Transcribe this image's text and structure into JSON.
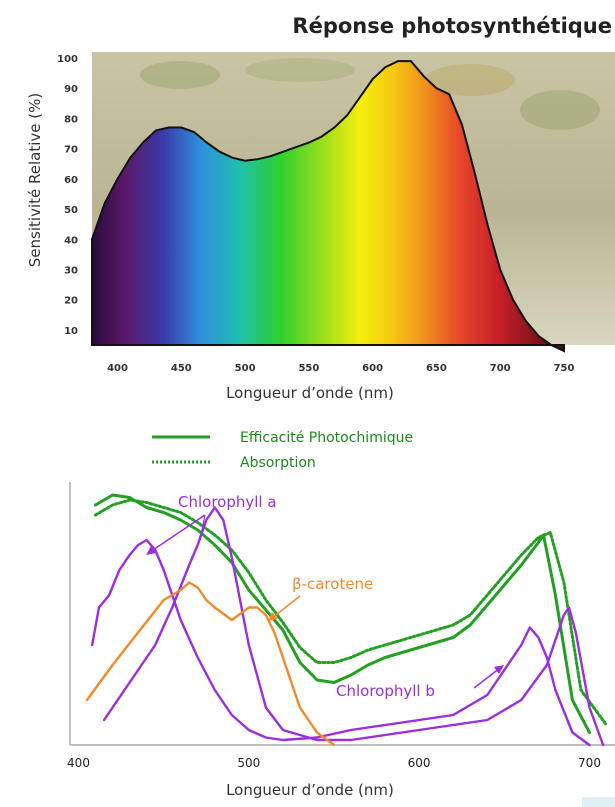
{
  "chart_data": [
    {
      "type": "area",
      "title": "Réponse photosynthétique",
      "xlabel": "Longueur d’onde (nm)",
      "ylabel": "Sensitivité Relative (%)",
      "xlim": [
        380,
        790
      ],
      "ylim": [
        5,
        102
      ],
      "x_ticks": [
        "400",
        "450",
        "500",
        "550",
        "600",
        "650",
        "700",
        "750"
      ],
      "y_ticks": [
        "100",
        "90",
        "80",
        "70",
        "60",
        "50",
        "40",
        "30",
        "20",
        "10"
      ],
      "fill": "visible-spectrum gradient",
      "series": [
        {
          "x": [
            380,
            390,
            400,
            410,
            420,
            430,
            440,
            450,
            460,
            470,
            480,
            490,
            500,
            510,
            520,
            530,
            540,
            550,
            560,
            570,
            580,
            590,
            600,
            610,
            620,
            630,
            640,
            650,
            660,
            670,
            680,
            690,
            700,
            710,
            720,
            730,
            740,
            750
          ],
          "y": [
            40,
            52,
            60,
            67,
            72,
            76,
            77,
            77,
            75.5,
            72,
            69,
            67,
            66,
            66.5,
            67.5,
            69,
            70.5,
            72,
            74,
            77,
            81,
            87,
            93,
            97,
            99,
            99,
            94,
            90,
            88,
            78,
            62,
            45,
            30,
            20,
            13,
            8,
            5,
            3
          ]
        }
      ]
    },
    {
      "type": "line",
      "xlabel": "Longueur d’onde (nm)",
      "ylabel": "",
      "xlim": [
        395,
        715
      ],
      "x_ticks": [
        "400",
        "500",
        "600",
        "700"
      ],
      "legend": [
        {
          "label": "Efficacité Photochimique",
          "style": "solid",
          "color": "#22a022"
        },
        {
          "label": "Absorption",
          "style": "dotted",
          "color": "#22a022"
        }
      ],
      "annotations": [
        "Chlorophyll a",
        "β-carotene",
        "Chlorophyll b"
      ],
      "series": [
        {
          "label": "Efficacité Photochimique",
          "color": "#22a022",
          "x": [
            410,
            420,
            430,
            440,
            450,
            460,
            470,
            480,
            490,
            500,
            510,
            520,
            530,
            540,
            550,
            560,
            570,
            580,
            590,
            600,
            610,
            620,
            630,
            640,
            650,
            660,
            670,
            673,
            680,
            690,
            700
          ],
          "y": [
            0.96,
            1.0,
            0.99,
            0.95,
            0.93,
            0.9,
            0.86,
            0.8,
            0.73,
            0.62,
            0.54,
            0.46,
            0.33,
            0.26,
            0.25,
            0.28,
            0.32,
            0.35,
            0.37,
            0.39,
            0.41,
            0.43,
            0.48,
            0.56,
            0.64,
            0.72,
            0.81,
            0.84,
            0.6,
            0.18,
            0.05
          ]
        },
        {
          "label": "Absorption",
          "color": "#22a022",
          "x": [
            410,
            420,
            430,
            440,
            450,
            460,
            470,
            480,
            490,
            500,
            510,
            520,
            530,
            540,
            550,
            560,
            570,
            580,
            590,
            600,
            610,
            620,
            630,
            640,
            650,
            660,
            670,
            677,
            685,
            695,
            710
          ],
          "y": [
            0.92,
            0.96,
            0.98,
            0.97,
            0.95,
            0.93,
            0.89,
            0.84,
            0.78,
            0.69,
            0.58,
            0.49,
            0.39,
            0.33,
            0.33,
            0.35,
            0.38,
            0.4,
            0.42,
            0.44,
            0.46,
            0.48,
            0.52,
            0.6,
            0.68,
            0.76,
            0.83,
            0.85,
            0.65,
            0.22,
            0.08
          ]
        },
        {
          "label": "Chlorophyll a",
          "color": "#9a2ee0",
          "x": [
            408,
            412,
            418,
            424,
            430,
            435,
            440,
            445,
            450,
            455,
            460,
            470,
            480,
            490,
            500,
            510,
            520,
            540,
            560,
            580,
            600,
            620,
            640,
            660,
            665,
            670,
            675,
            680,
            690,
            700
          ],
          "y": [
            0.4,
            0.55,
            0.6,
            0.7,
            0.76,
            0.8,
            0.82,
            0.78,
            0.7,
            0.6,
            0.5,
            0.35,
            0.22,
            0.12,
            0.06,
            0.03,
            0.02,
            0.03,
            0.06,
            0.08,
            0.1,
            0.12,
            0.2,
            0.4,
            0.47,
            0.43,
            0.35,
            0.22,
            0.05,
            0.0
          ]
        },
        {
          "label": "Chlorophyll b",
          "color": "#9a2ee0",
          "x": [
            415,
            430,
            445,
            455,
            465,
            470,
            475,
            480,
            485,
            490,
            500,
            510,
            520,
            540,
            560,
            580,
            600,
            620,
            640,
            660,
            675,
            680,
            685,
            688,
            692,
            700,
            708
          ],
          "y": [
            0.1,
            0.25,
            0.4,
            0.55,
            0.72,
            0.8,
            0.9,
            0.95,
            0.9,
            0.75,
            0.4,
            0.15,
            0.06,
            0.02,
            0.02,
            0.04,
            0.06,
            0.08,
            0.1,
            0.18,
            0.32,
            0.42,
            0.52,
            0.55,
            0.45,
            0.15,
            0.0
          ]
        },
        {
          "label": "β-carotene",
          "color": "#f08a2a",
          "x": [
            405,
            420,
            435,
            450,
            460,
            465,
            470,
            475,
            480,
            490,
            500,
            505,
            510,
            515,
            520,
            530,
            540,
            550
          ],
          "y": [
            0.18,
            0.32,
            0.45,
            0.58,
            0.62,
            0.65,
            0.63,
            0.58,
            0.55,
            0.5,
            0.55,
            0.55,
            0.52,
            0.45,
            0.35,
            0.15,
            0.05,
            0.0
          ]
        }
      ]
    }
  ]
}
